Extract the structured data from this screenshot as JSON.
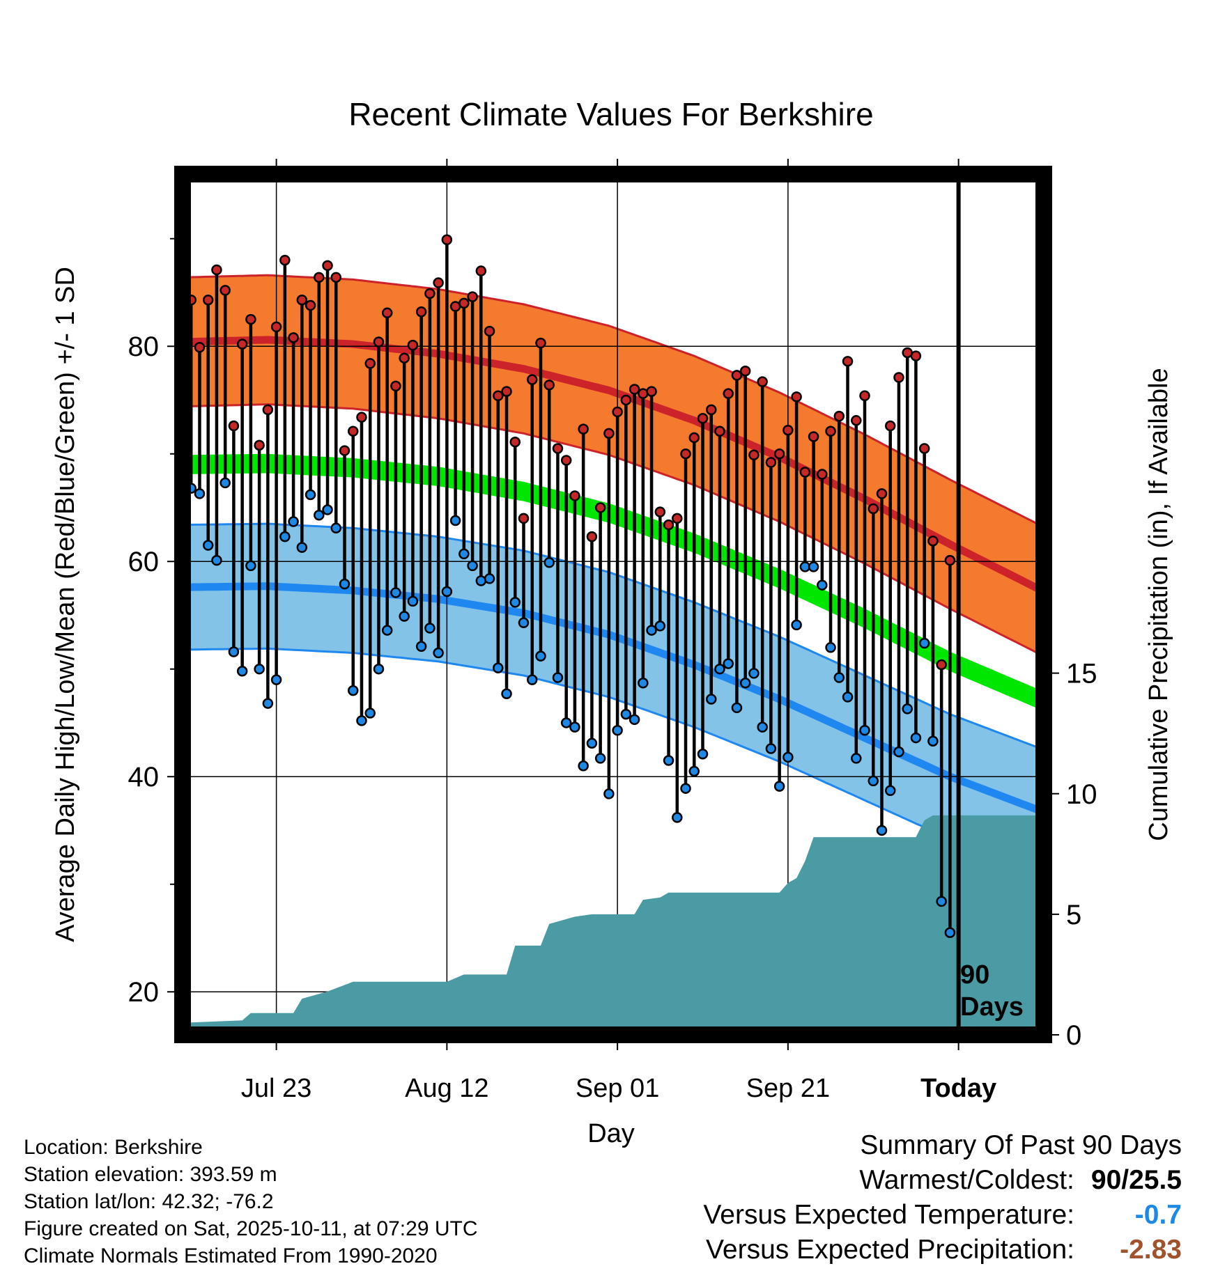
{
  "chart_data": {
    "type": "line",
    "title": "Recent Climate Values For Berkshire",
    "xlabel": "Day",
    "ylabel": "Average Daily High/Low/Mean (Red/Blue/Green) +/- 1 SD",
    "y2label": "Cumulative Precipitation (in), If Available",
    "x_ticks": [
      "Jul 23",
      "Aug 12",
      "Sep 01",
      "Sep 21",
      "Today"
    ],
    "x_tick_days": [
      11,
      31,
      51,
      71,
      91
    ],
    "x_range_days": [
      0,
      101
    ],
    "ylim": [
      16,
      96
    ],
    "y_ticks": [
      20,
      40,
      60,
      80
    ],
    "y_minor_ticks": [
      30,
      50,
      70,
      90
    ],
    "y2lim": [
      0,
      35.7
    ],
    "y2_ticks": [
      0,
      5,
      10,
      15
    ],
    "today_marker_label": [
      "90",
      "Days"
    ],
    "normals": {
      "day": [
        0,
        10,
        20,
        30,
        40,
        50,
        60,
        70,
        80,
        90,
        101
      ],
      "high_mean": [
        80.4,
        80.6,
        80.2,
        79.3,
        77.9,
        75.9,
        73.1,
        69.7,
        65.8,
        61.6,
        57.2
      ],
      "high_sd": 6.0,
      "low_mean": [
        57.6,
        57.7,
        57.3,
        56.5,
        55.2,
        53.2,
        50.4,
        47.2,
        43.6,
        40.0,
        36.7
      ],
      "low_sd": 5.8,
      "avg_mean": [
        69.0,
        69.1,
        68.7,
        67.9,
        66.5,
        64.5,
        61.7,
        58.4,
        54.7,
        50.7,
        47.0
      ],
      "avg_band": 0.8
    },
    "series": [
      {
        "name": "Daily High",
        "color": "#c62828",
        "values": [
          84.3,
          79.9,
          84.3,
          87.1,
          85.2,
          72.6,
          80.2,
          82.5,
          70.8,
          74.1,
          81.8,
          88.0,
          80.8,
          84.3,
          83.8,
          86.4,
          87.5,
          86.4,
          70.3,
          72.1,
          73.4,
          78.4,
          80.4,
          83.1,
          76.3,
          78.9,
          80.1,
          83.2,
          84.9,
          85.9,
          89.9,
          83.7,
          84.0,
          84.6,
          87.0,
          81.4,
          75.4,
          75.8,
          71.1,
          64.0,
          76.9,
          80.3,
          76.4,
          70.5,
          69.4,
          66.1,
          72.3,
          62.3,
          65.0,
          71.9,
          73.9,
          75.0,
          76.0,
          75.6,
          75.8,
          64.6,
          63.4,
          64.0,
          70.0,
          71.5,
          73.3,
          74.1,
          72.1,
          75.6,
          77.3,
          77.7,
          69.9,
          76.7,
          69.2,
          70.0,
          72.2,
          75.3,
          68.3,
          71.6,
          68.1,
          72.1,
          73.5,
          78.6,
          73.1,
          75.4,
          64.9,
          66.3,
          72.6,
          77.1,
          79.4,
          79.1,
          70.5,
          61.9,
          50.4,
          60.1
        ]
      },
      {
        "name": "Daily Low",
        "color": "#1e88e5",
        "values": [
          66.8,
          66.3,
          61.5,
          60.1,
          67.3,
          51.6,
          49.8,
          59.6,
          50.0,
          46.8,
          49.0,
          62.3,
          63.7,
          61.3,
          66.2,
          64.3,
          64.8,
          63.1,
          57.9,
          48.0,
          45.2,
          45.9,
          50.0,
          53.6,
          57.1,
          54.9,
          56.3,
          52.1,
          53.8,
          51.5,
          57.2,
          63.8,
          60.7,
          59.6,
          58.2,
          58.4,
          50.1,
          47.7,
          56.2,
          54.3,
          49.0,
          51.2,
          59.9,
          49.2,
          45.0,
          44.6,
          41.0,
          43.1,
          41.7,
          38.4,
          44.3,
          45.8,
          45.3,
          48.7,
          53.6,
          54.0,
          41.5,
          36.2,
          38.9,
          40.5,
          42.1,
          47.2,
          50.0,
          50.5,
          46.4,
          48.7,
          49.6,
          44.6,
          42.6,
          39.1,
          41.8,
          54.1,
          59.5,
          59.5,
          57.8,
          52.0,
          49.2,
          47.4,
          41.7,
          44.3,
          39.6,
          35.0,
          38.7,
          42.3,
          46.3,
          43.6,
          52.4,
          43.3,
          28.4,
          25.5
        ]
      }
    ],
    "precip_cumulative": {
      "day": [
        0,
        7,
        8,
        13,
        14,
        17,
        20,
        26,
        31,
        33,
        34,
        38,
        39,
        42,
        43,
        46,
        48,
        51,
        53,
        54,
        56,
        57,
        70,
        71,
        72,
        73,
        74,
        80,
        86,
        87,
        88,
        101
      ],
      "values": [
        0.5,
        0.6,
        0.9,
        0.9,
        1.5,
        1.8,
        2.2,
        2.2,
        2.2,
        2.5,
        2.5,
        2.5,
        3.7,
        3.7,
        4.6,
        4.9,
        5.0,
        5.0,
        5.0,
        5.6,
        5.7,
        5.9,
        5.9,
        6.3,
        6.5,
        7.2,
        8.2,
        8.2,
        8.2,
        8.9,
        9.1,
        9.1
      ]
    }
  },
  "info": {
    "location": "Location: Berkshire",
    "elevation": "Station elevation: 393.59 m",
    "latlon": "Station lat/lon: 42.32; -76.2",
    "created": "Figure created on Sat, 2025-10-11, at 07:29 UTC",
    "normals": "Climate Normals Estimated From 1990-2020"
  },
  "summary": {
    "title": "Summary Of Past 90 Days",
    "warm_label": "Warmest/Coldest:",
    "warm_value": "90/25.5",
    "temp_label": "Versus Expected Temperature:",
    "temp_value": "-0.7",
    "temp_color": "#1e88e5",
    "precip_label": "Versus Expected Precipitation:",
    "precip_value": "-2.83",
    "precip_color": "#a0522d"
  },
  "colors": {
    "high_band": "#f47a2e",
    "high_line": "#cc2229",
    "low_band": "#84c3e8",
    "low_line": "#1e88f0",
    "avg_line": "#00e600",
    "precip_fill": "#4a9ba3"
  }
}
